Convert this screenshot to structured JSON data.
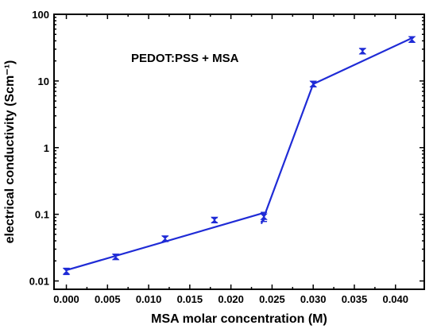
{
  "chart_data": {
    "type": "scatter",
    "annotation": "PEDOT:PSS + MSA",
    "xlabel": "MSA molar concentration (M)",
    "ylabel": "electrical conductivity (Scm⁻¹)",
    "xlim": [
      -0.0015,
      0.0435
    ],
    "ylim": [
      0.0075,
      100
    ],
    "y_scale": "log",
    "grid": false,
    "x_ticks": [
      0.0,
      0.005,
      0.01,
      0.015,
      0.02,
      0.025,
      0.03,
      0.035,
      0.04
    ],
    "x_tick_labels": [
      "0.000",
      "0.005",
      "0.010",
      "0.015",
      "0.020",
      "0.025",
      "0.030",
      "0.035",
      "0.040"
    ],
    "y_ticks": [
      0.01,
      0.1,
      1,
      10,
      100
    ],
    "y_tick_labels": [
      "0.01",
      "0.1",
      "1",
      "10",
      "100"
    ],
    "series": [
      {
        "marker": "bowtie",
        "color": "#1f2bd6",
        "x": [
          0.0,
          0.006,
          0.012,
          0.018,
          0.024,
          0.03,
          0.036,
          0.042
        ],
        "y": [
          0.014,
          0.023,
          0.043,
          0.082,
          0.092,
          9.0,
          28.0,
          42.0
        ],
        "y_err_low": [
          0.0125,
          0.021,
          0.039,
          0.075,
          0.078,
          8.2,
          25.5,
          38.0
        ],
        "y_err_high": [
          0.0155,
          0.025,
          0.047,
          0.089,
          0.107,
          9.9,
          30.5,
          46.0
        ]
      }
    ],
    "fit_lines": [
      {
        "x": [
          0.0,
          0.024
        ],
        "y": [
          0.0145,
          0.105
        ]
      },
      {
        "x": [
          0.0237,
          0.03
        ],
        "y": [
          0.072,
          9.0
        ]
      },
      {
        "x": [
          0.03,
          0.042
        ],
        "y": [
          9.0,
          44.0
        ]
      }
    ]
  }
}
